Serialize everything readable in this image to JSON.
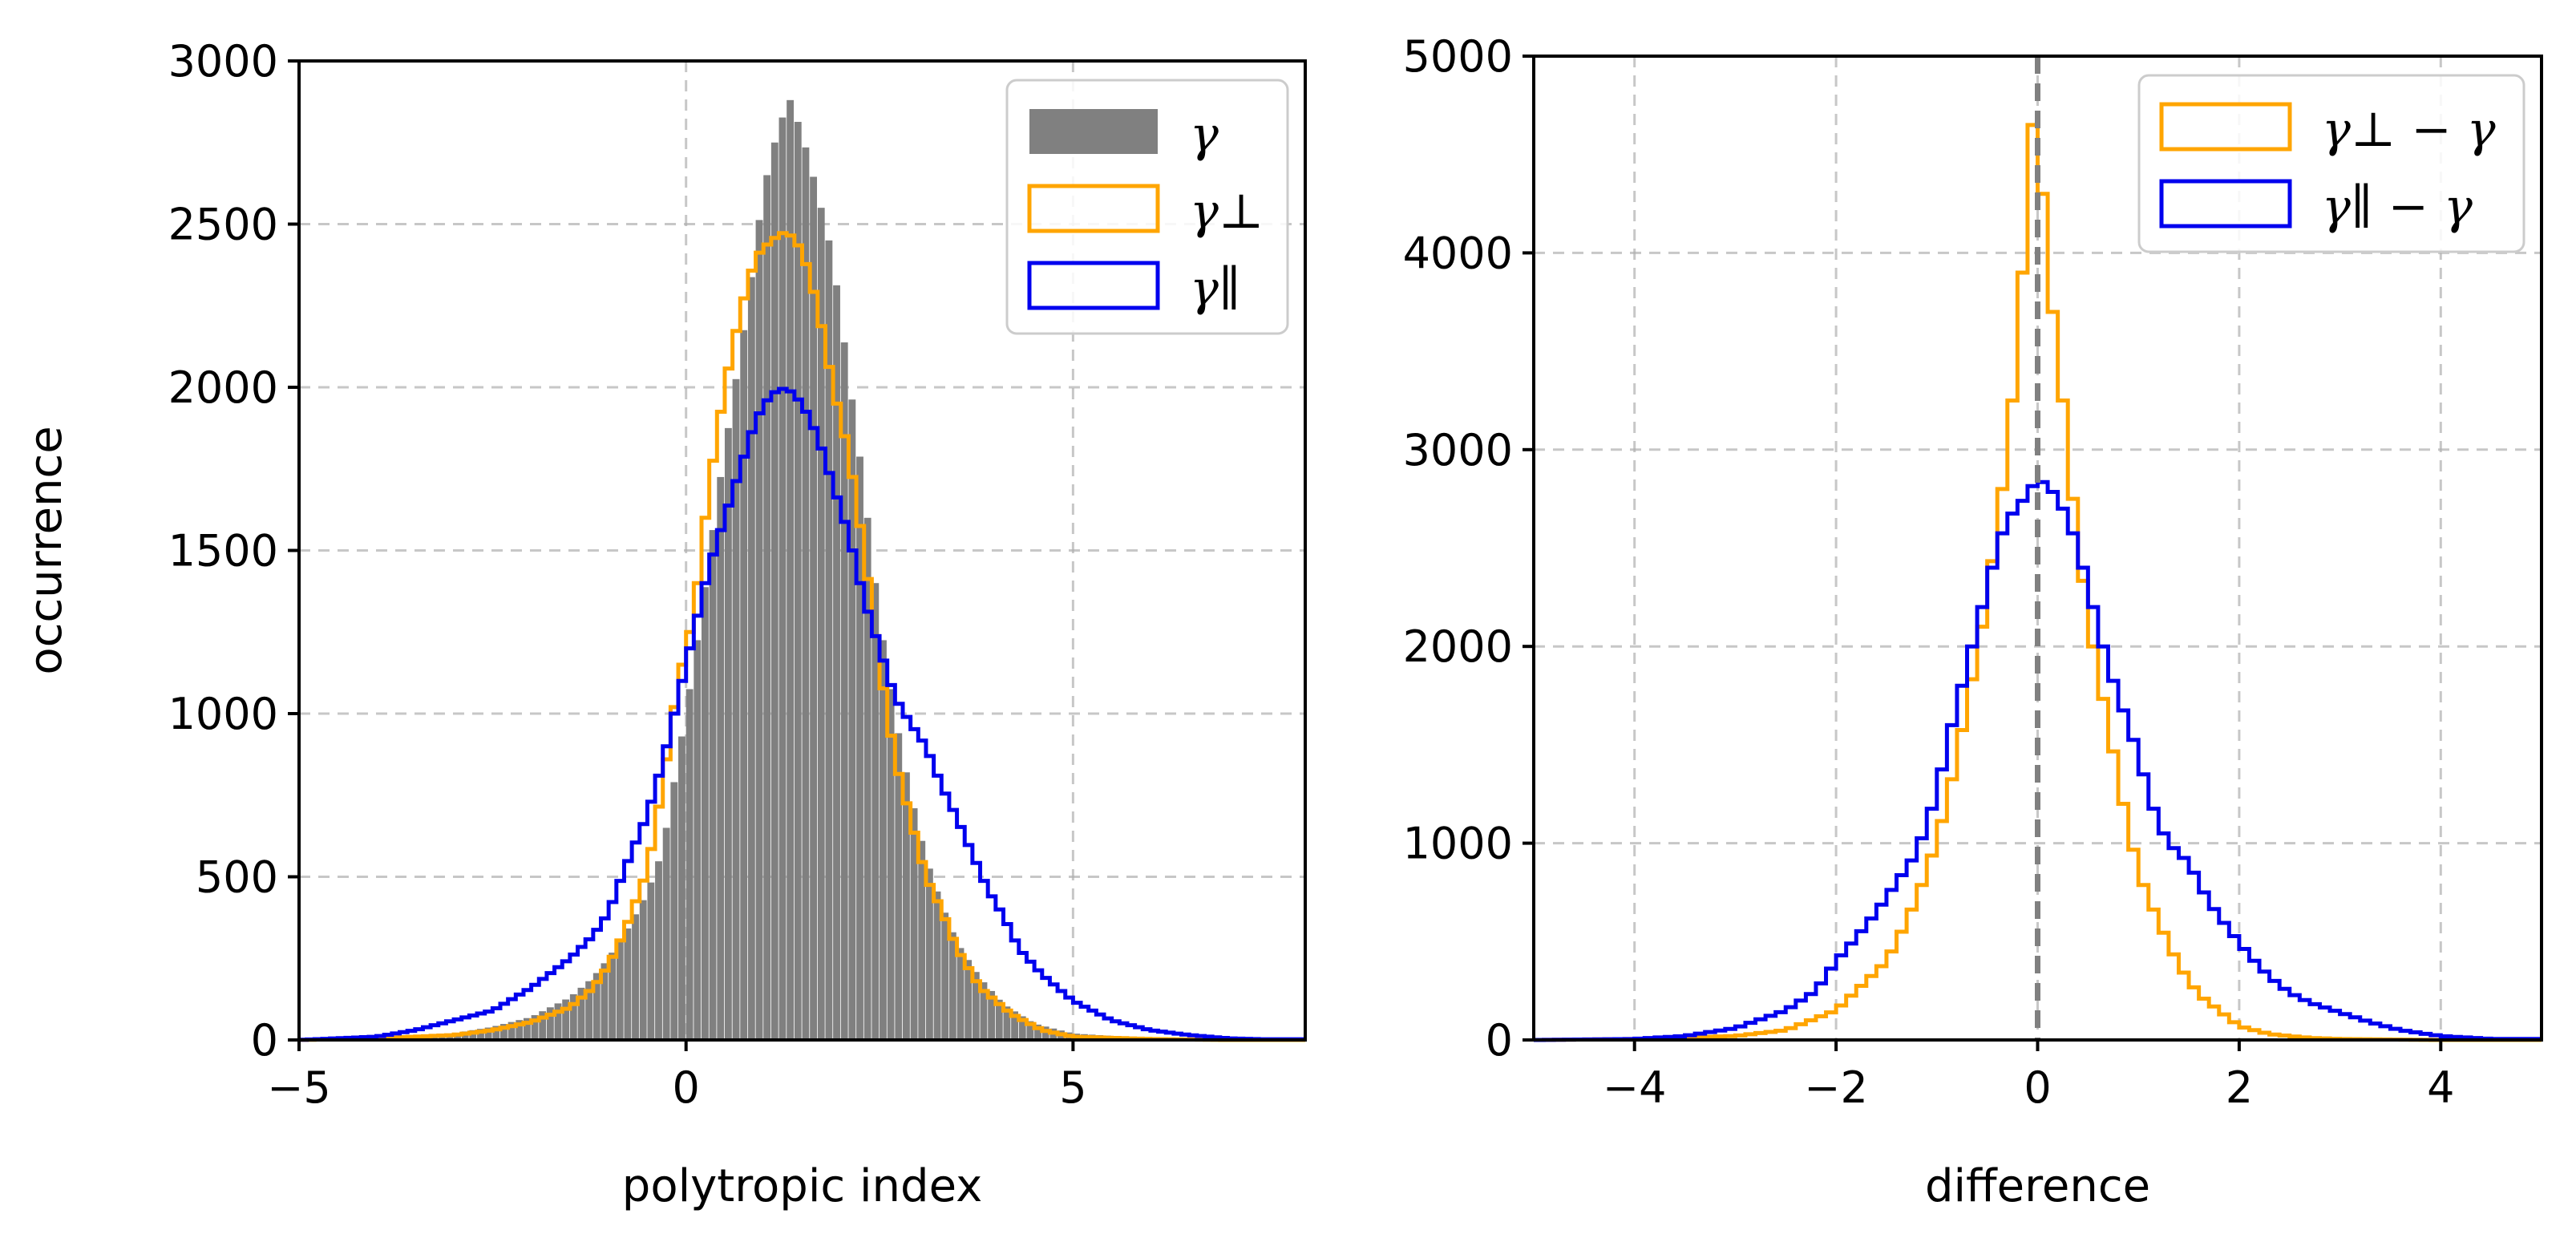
{
  "chart_data": [
    {
      "type": "histogram",
      "xlabel": "polytropic index",
      "ylabel": "occurrence",
      "xlim": [
        -5,
        8
      ],
      "ylim": [
        0,
        3000
      ],
      "xticks": [
        -5,
        0,
        5
      ],
      "yticks": [
        0,
        500,
        1000,
        1500,
        2000,
        2500,
        3000
      ],
      "grid": true,
      "legend_position": "upper right",
      "series": [
        {
          "name": "γ",
          "style": "filled",
          "color": "#808080",
          "points": [
            [
              -5,
              0
            ],
            [
              -4,
              5
            ],
            [
              -3,
              20
            ],
            [
              -2.5,
              40
            ],
            [
              -2,
              70
            ],
            [
              -1.5,
              130
            ],
            [
              -1.2,
              190
            ],
            [
              -1,
              250
            ],
            [
              -0.8,
              320
            ],
            [
              -0.5,
              450
            ],
            [
              -0.3,
              580
            ],
            [
              0,
              1000
            ],
            [
              0.2,
              1300
            ],
            [
              0.4,
              1650
            ],
            [
              0.6,
              1950
            ],
            [
              0.8,
              2250
            ],
            [
              1,
              2600
            ],
            [
              1.2,
              2800
            ],
            [
              1.35,
              2880
            ],
            [
              1.5,
              2780
            ],
            [
              1.7,
              2600
            ],
            [
              1.9,
              2400
            ],
            [
              2.1,
              2050
            ],
            [
              2.3,
              1700
            ],
            [
              2.5,
              1300
            ],
            [
              2.7,
              1000
            ],
            [
              2.9,
              760
            ],
            [
              3.1,
              560
            ],
            [
              3.3,
              420
            ],
            [
              3.5,
              300
            ],
            [
              3.8,
              190
            ],
            [
              4.1,
              110
            ],
            [
              4.5,
              50
            ],
            [
              5,
              20
            ],
            [
              6,
              5
            ],
            [
              7,
              2
            ]
          ]
        },
        {
          "name": "γ⊥",
          "style": "step",
          "color": "#ffa500",
          "points": [
            [
              -5,
              0
            ],
            [
              -4,
              5
            ],
            [
              -3,
              15
            ],
            [
              -2.5,
              30
            ],
            [
              -2,
              55
            ],
            [
              -1.5,
              100
            ],
            [
              -1.2,
              160
            ],
            [
              -1,
              230
            ],
            [
              -0.8,
              330
            ],
            [
              -0.5,
              520
            ],
            [
              -0.3,
              780
            ],
            [
              -0.1,
              1100
            ],
            [
              0.1,
              1300
            ],
            [
              0.3,
              1700
            ],
            [
              0.5,
              2000
            ],
            [
              0.7,
              2230
            ],
            [
              0.9,
              2400
            ],
            [
              1.1,
              2450
            ],
            [
              1.3,
              2480
            ],
            [
              1.5,
              2420
            ],
            [
              1.7,
              2250
            ],
            [
              1.9,
              2000
            ],
            [
              2.1,
              1800
            ],
            [
              2.3,
              1500
            ],
            [
              2.5,
              1150
            ],
            [
              2.7,
              860
            ],
            [
              2.9,
              680
            ],
            [
              3.1,
              500
            ],
            [
              3.3,
              400
            ],
            [
              3.5,
              280
            ],
            [
              3.8,
              160
            ],
            [
              4.2,
              80
            ],
            [
              4.6,
              30
            ],
            [
              5,
              10
            ],
            [
              6,
              3
            ],
            [
              7,
              0
            ]
          ]
        },
        {
          "name": "γ∥",
          "style": "step",
          "color": "#0000ee",
          "points": [
            [
              -5,
              0
            ],
            [
              -4,
              10
            ],
            [
              -3.5,
              30
            ],
            [
              -3,
              60
            ],
            [
              -2.5,
              90
            ],
            [
              -2,
              160
            ],
            [
              -1.5,
              250
            ],
            [
              -1.2,
              320
            ],
            [
              -1,
              390
            ],
            [
              -0.8,
              520
            ],
            [
              -0.5,
              690
            ],
            [
              -0.3,
              850
            ],
            [
              -0.1,
              1050
            ],
            [
              0.1,
              1250
            ],
            [
              0.3,
              1450
            ],
            [
              0.5,
              1600
            ],
            [
              0.7,
              1750
            ],
            [
              0.9,
              1900
            ],
            [
              1.1,
              1980
            ],
            [
              1.3,
              2000
            ],
            [
              1.5,
              1950
            ],
            [
              1.7,
              1850
            ],
            [
              1.9,
              1700
            ],
            [
              2.1,
              1550
            ],
            [
              2.3,
              1350
            ],
            [
              2.5,
              1200
            ],
            [
              2.7,
              1050
            ],
            [
              2.9,
              970
            ],
            [
              3.1,
              900
            ],
            [
              3.3,
              780
            ],
            [
              3.5,
              680
            ],
            [
              3.7,
              570
            ],
            [
              3.9,
              460
            ],
            [
              4.1,
              380
            ],
            [
              4.3,
              280
            ],
            [
              4.6,
              200
            ],
            [
              5,
              120
            ],
            [
              5.5,
              60
            ],
            [
              6,
              30
            ],
            [
              6.5,
              15
            ],
            [
              7,
              5
            ],
            [
              7.5,
              2
            ]
          ]
        }
      ]
    },
    {
      "type": "histogram",
      "xlabel": "difference",
      "ylabel": "",
      "xlim": [
        -5,
        5
      ],
      "ylim": [
        0,
        5000
      ],
      "xticks": [
        -4,
        -2,
        0,
        2,
        4
      ],
      "yticks": [
        0,
        1000,
        2000,
        3000,
        4000,
        5000
      ],
      "grid": true,
      "vline_x": 0,
      "vline_color": "#808080",
      "legend_position": "upper right",
      "series": [
        {
          "name": "γ⊥ − γ",
          "style": "step",
          "color": "#ffa500",
          "points": [
            [
              -5,
              0
            ],
            [
              -4,
              5
            ],
            [
              -3,
              20
            ],
            [
              -2.5,
              50
            ],
            [
              -2,
              150
            ],
            [
              -1.8,
              250
            ],
            [
              -1.5,
              400
            ],
            [
              -1.3,
              600
            ],
            [
              -1.1,
              850
            ],
            [
              -0.9,
              1200
            ],
            [
              -0.7,
              1700
            ],
            [
              -0.55,
              2100
            ],
            [
              -0.4,
              2600
            ],
            [
              -0.3,
              3000
            ],
            [
              -0.2,
              3500
            ],
            [
              -0.15,
              3900
            ],
            [
              -0.1,
              4400
            ],
            [
              -0.05,
              4650
            ],
            [
              0,
              4520
            ],
            [
              0.05,
              4300
            ],
            [
              0.1,
              3900
            ],
            [
              0.2,
              3500
            ],
            [
              0.3,
              3000
            ],
            [
              0.4,
              2500
            ],
            [
              0.55,
              2000
            ],
            [
              0.7,
              1600
            ],
            [
              0.85,
              1200
            ],
            [
              1,
              850
            ],
            [
              1.2,
              600
            ],
            [
              1.4,
              380
            ],
            [
              1.6,
              230
            ],
            [
              1.8,
              150
            ],
            [
              2,
              70
            ],
            [
              2.3,
              30
            ],
            [
              2.7,
              10
            ],
            [
              3,
              5
            ],
            [
              4,
              0
            ]
          ]
        },
        {
          "name": "γ∥ − γ",
          "style": "step",
          "color": "#0000ee",
          "points": [
            [
              -5,
              0
            ],
            [
              -4,
              5
            ],
            [
              -3.5,
              20
            ],
            [
              -3,
              60
            ],
            [
              -2.5,
              150
            ],
            [
              -2.2,
              250
            ],
            [
              -2,
              400
            ],
            [
              -1.8,
              520
            ],
            [
              -1.6,
              650
            ],
            [
              -1.4,
              800
            ],
            [
              -1.2,
              950
            ],
            [
              -1.1,
              1100
            ],
            [
              -1,
              1250
            ],
            [
              -0.9,
              1500
            ],
            [
              -0.8,
              1700
            ],
            [
              -0.7,
              1900
            ],
            [
              -0.6,
              2100
            ],
            [
              -0.5,
              2300
            ],
            [
              -0.4,
              2500
            ],
            [
              -0.3,
              2650
            ],
            [
              -0.2,
              2700
            ],
            [
              -0.1,
              2780
            ],
            [
              0,
              2850
            ],
            [
              0.1,
              2820
            ],
            [
              0.2,
              2750
            ],
            [
              0.3,
              2650
            ],
            [
              0.4,
              2500
            ],
            [
              0.5,
              2300
            ],
            [
              0.6,
              2100
            ],
            [
              0.7,
              1900
            ],
            [
              0.8,
              1750
            ],
            [
              0.9,
              1600
            ],
            [
              1,
              1450
            ],
            [
              1.1,
              1250
            ],
            [
              1.2,
              1100
            ],
            [
              1.3,
              1000
            ],
            [
              1.5,
              900
            ],
            [
              1.7,
              700
            ],
            [
              1.9,
              560
            ],
            [
              2.1,
              430
            ],
            [
              2.3,
              320
            ],
            [
              2.5,
              240
            ],
            [
              2.7,
              190
            ],
            [
              3,
              140
            ],
            [
              3.3,
              90
            ],
            [
              3.6,
              50
            ],
            [
              4,
              20
            ],
            [
              4.5,
              5
            ]
          ]
        }
      ]
    }
  ]
}
